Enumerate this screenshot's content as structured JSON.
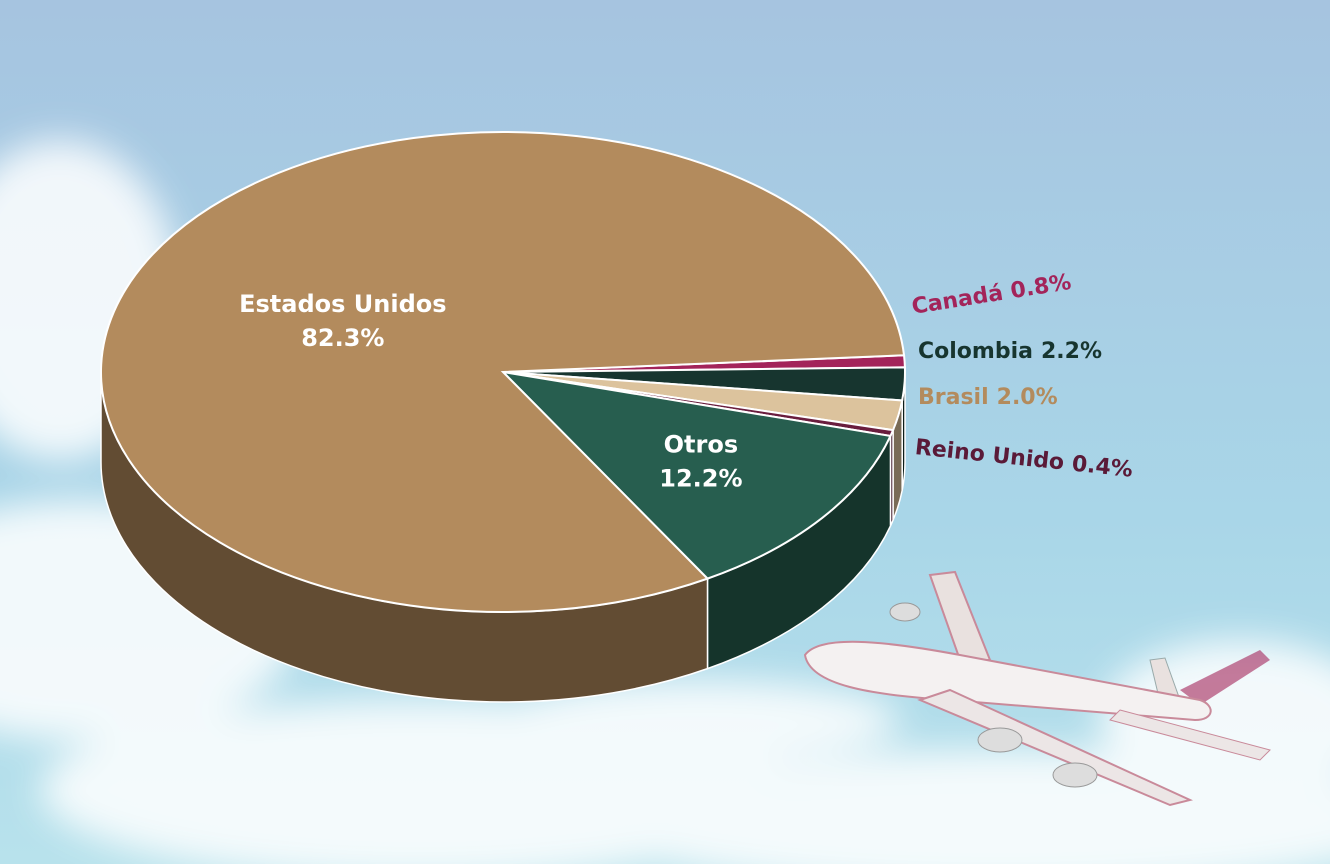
{
  "chart_data": {
    "type": "pie",
    "categories": [
      "Canadá",
      "Colombia",
      "Brasil",
      "Reino Unido",
      "Otros",
      "Estados Unidos"
    ],
    "values": [
      0.8,
      2.2,
      2.0,
      0.4,
      12.2,
      82.3
    ],
    "value_labels": [
      "0.8%",
      "2.2%",
      "2.0%",
      "0.4%",
      "12.2%",
      "82.3%"
    ],
    "colors": [
      "#a3245a",
      "#17352f",
      "#dcc39d",
      "#6a1d3e",
      "#275e4f",
      "#b38b5d"
    ],
    "label_colors": [
      "#a3245a",
      "#17352f",
      "#b38b5d",
      "#5a1a38",
      "#ffffff",
      "#ffffff"
    ]
  }
}
